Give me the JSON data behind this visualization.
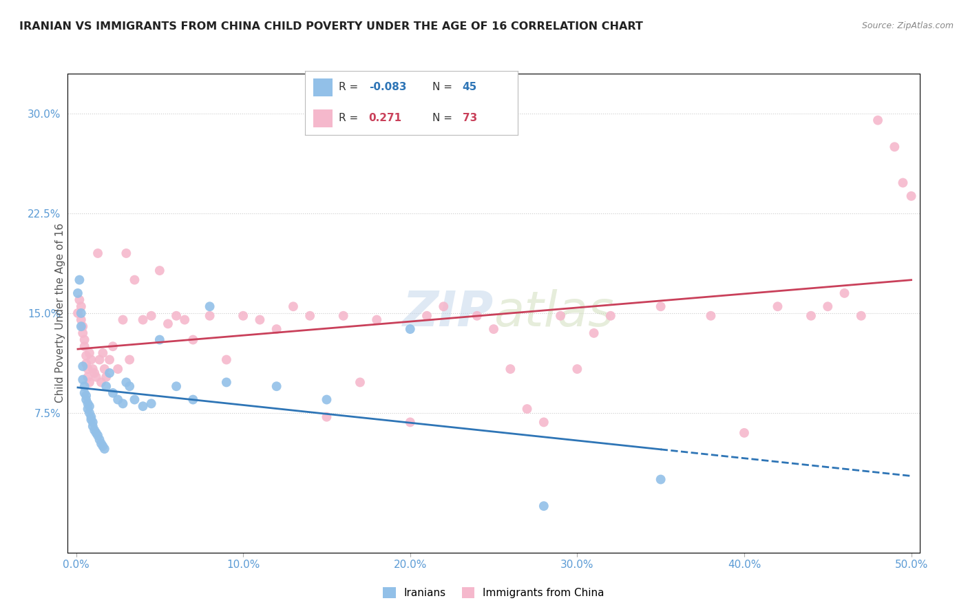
{
  "title": "IRANIAN VS IMMIGRANTS FROM CHINA CHILD POVERTY UNDER THE AGE OF 16 CORRELATION CHART",
  "source": "Source: ZipAtlas.com",
  "ylabel": "Child Poverty Under the Age of 16",
  "xlabel_ticks": [
    "0.0%",
    "10.0%",
    "20.0%",
    "30.0%",
    "40.0%",
    "50.0%"
  ],
  "xlabel_vals": [
    0.0,
    0.1,
    0.2,
    0.3,
    0.4,
    0.5
  ],
  "ylabel_ticks": [
    "7.5%",
    "15.0%",
    "22.5%",
    "30.0%"
  ],
  "ylabel_vals": [
    0.075,
    0.15,
    0.225,
    0.3
  ],
  "xlim": [
    -0.005,
    0.505
  ],
  "ylim": [
    -0.03,
    0.33
  ],
  "iranians_R": -0.083,
  "iranians_N": 45,
  "china_R": 0.271,
  "china_N": 73,
  "blue_color": "#92c0e8",
  "pink_color": "#f5b8cc",
  "blue_line_color": "#2e75b6",
  "pink_line_color": "#c9405a",
  "legend_label_iranians": "Iranians",
  "legend_label_china": "Immigrants from China",
  "watermark_zip": "ZIP",
  "watermark_atlas": "atlas",
  "background_color": "#ffffff",
  "grid_color": "#cccccc",
  "title_color": "#222222",
  "axis_label_color": "#5b9bd5",
  "iranians_x": [
    0.001,
    0.002,
    0.003,
    0.003,
    0.004,
    0.004,
    0.005,
    0.005,
    0.006,
    0.006,
    0.007,
    0.007,
    0.008,
    0.008,
    0.009,
    0.009,
    0.01,
    0.01,
    0.011,
    0.012,
    0.013,
    0.014,
    0.015,
    0.016,
    0.017,
    0.018,
    0.02,
    0.022,
    0.025,
    0.028,
    0.03,
    0.032,
    0.035,
    0.04,
    0.045,
    0.05,
    0.06,
    0.07,
    0.08,
    0.09,
    0.12,
    0.15,
    0.2,
    0.28,
    0.35
  ],
  "iranians_y": [
    0.165,
    0.175,
    0.14,
    0.15,
    0.1,
    0.11,
    0.09,
    0.095,
    0.085,
    0.088,
    0.082,
    0.078,
    0.075,
    0.08,
    0.07,
    0.072,
    0.068,
    0.065,
    0.062,
    0.06,
    0.058,
    0.055,
    0.052,
    0.05,
    0.048,
    0.095,
    0.105,
    0.09,
    0.085,
    0.082,
    0.098,
    0.095,
    0.085,
    0.08,
    0.082,
    0.13,
    0.095,
    0.085,
    0.155,
    0.098,
    0.095,
    0.085,
    0.138,
    0.005,
    0.025
  ],
  "china_x": [
    0.001,
    0.002,
    0.003,
    0.003,
    0.004,
    0.004,
    0.005,
    0.005,
    0.006,
    0.006,
    0.007,
    0.007,
    0.008,
    0.008,
    0.009,
    0.01,
    0.011,
    0.012,
    0.013,
    0.014,
    0.015,
    0.016,
    0.017,
    0.018,
    0.02,
    0.022,
    0.025,
    0.028,
    0.03,
    0.032,
    0.035,
    0.04,
    0.045,
    0.05,
    0.055,
    0.06,
    0.065,
    0.07,
    0.08,
    0.09,
    0.1,
    0.11,
    0.12,
    0.13,
    0.14,
    0.15,
    0.16,
    0.17,
    0.18,
    0.2,
    0.21,
    0.22,
    0.24,
    0.25,
    0.26,
    0.27,
    0.28,
    0.29,
    0.3,
    0.31,
    0.32,
    0.35,
    0.38,
    0.4,
    0.42,
    0.44,
    0.45,
    0.46,
    0.47,
    0.48,
    0.49,
    0.495,
    0.5
  ],
  "china_y": [
    0.15,
    0.16,
    0.145,
    0.155,
    0.135,
    0.14,
    0.125,
    0.13,
    0.118,
    0.112,
    0.108,
    0.102,
    0.098,
    0.12,
    0.115,
    0.108,
    0.105,
    0.102,
    0.195,
    0.115,
    0.098,
    0.12,
    0.108,
    0.102,
    0.115,
    0.125,
    0.108,
    0.145,
    0.195,
    0.115,
    0.175,
    0.145,
    0.148,
    0.182,
    0.142,
    0.148,
    0.145,
    0.13,
    0.148,
    0.115,
    0.148,
    0.145,
    0.138,
    0.155,
    0.148,
    0.072,
    0.148,
    0.098,
    0.145,
    0.068,
    0.148,
    0.155,
    0.148,
    0.138,
    0.108,
    0.078,
    0.068,
    0.148,
    0.108,
    0.135,
    0.148,
    0.155,
    0.148,
    0.06,
    0.155,
    0.148,
    0.155,
    0.165,
    0.148,
    0.295,
    0.275,
    0.248,
    0.238
  ]
}
